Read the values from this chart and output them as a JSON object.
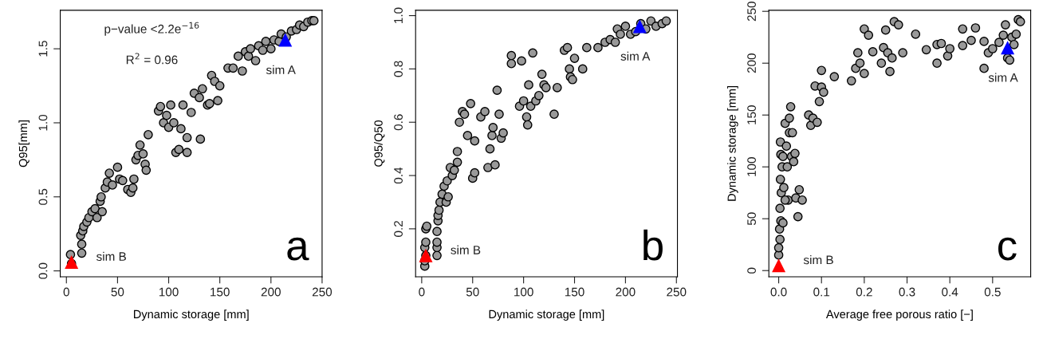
{
  "chart_data": [
    {
      "type": "scatter",
      "xlabel": "Dynamic storage [mm]",
      "ylabel": "Q95[mm]",
      "xlim": [
        -6,
        250
      ],
      "ylim": [
        -0.04,
        1.76
      ],
      "xticks": [
        0,
        50,
        100,
        150,
        200,
        250
      ],
      "yticks": [
        {
          "value": 0,
          "label": "0.0"
        },
        {
          "value": 0.5,
          "label": "0.5"
        },
        {
          "value": 1,
          "label": "1.0"
        },
        {
          "value": 1.5,
          "label": "1.5"
        }
      ],
      "grid": false,
      "legend": false,
      "annotations": [
        "p−value <2.2e$^{−16}$",
        "R$^{2}$ = 0.96",
        "a"
      ],
      "series": [
        {
          "color": "#999999",
          "marker": "circle",
          "x": [
            5,
            4,
            15,
            15,
            14,
            16,
            17,
            20,
            22,
            25,
            28,
            30,
            33,
            34,
            35,
            38,
            40,
            42,
            45,
            50,
            52,
            55,
            60,
            63,
            65,
            66,
            68,
            70,
            72,
            75,
            77,
            78,
            80,
            90,
            92,
            95,
            98,
            100,
            102,
            105,
            107,
            110,
            112,
            114,
            118,
            118,
            122,
            125,
            130,
            131,
            133,
            138,
            140,
            142,
            145,
            148,
            150,
            158,
            163,
            168,
            172,
            175,
            178,
            180,
            185,
            188,
            192,
            195,
            200,
            203,
            208,
            210,
            215,
            220,
            225,
            228,
            232,
            236,
            240,
            242
          ],
          "values": [
            0.05,
            0.11,
            0.12,
            0.18,
            0.24,
            0.27,
            0.3,
            0.33,
            0.36,
            0.4,
            0.42,
            0.36,
            0.47,
            0.5,
            0.4,
            0.56,
            0.6,
            0.66,
            0.58,
            0.7,
            0.62,
            0.61,
            0.55,
            0.53,
            0.56,
            0.62,
            0.75,
            0.78,
            0.85,
            0.79,
            0.72,
            0.68,
            0.92,
            1.08,
            1.11,
            1.0,
            1.05,
            0.97,
            1.12,
            1.0,
            0.8,
            0.82,
            0.96,
            1.12,
            0.9,
            0.8,
            1.07,
            1.2,
            1.17,
            0.89,
            1.23,
            1.12,
            1.13,
            1.32,
            1.28,
            1.15,
            1.25,
            1.37,
            1.37,
            1.45,
            1.35,
            1.48,
            1.45,
            1.5,
            1.42,
            1.52,
            1.49,
            1.55,
            1.5,
            1.56,
            1.55,
            1.6,
            1.58,
            1.62,
            1.63,
            1.66,
            1.65,
            1.68,
            1.69,
            1.69
          ]
        },
        {
          "name": "sim B",
          "color": "#ff0000",
          "marker": "triangle",
          "x": [
            5
          ],
          "values": [
            0.06
          ]
        },
        {
          "name": "sim A",
          "color": "#0000ff",
          "marker": "triangle",
          "x": [
            214
          ],
          "values": [
            1.56
          ]
        }
      ]
    },
    {
      "type": "scatter",
      "xlabel": "Dynamic storage [mm]",
      "ylabel": "Q95/Q50",
      "xlim": [
        -6,
        251
      ],
      "ylim": [
        0.02,
        1.02
      ],
      "xticks": [
        0,
        50,
        100,
        150,
        200,
        250
      ],
      "yticks": [
        0.2,
        0.4,
        0.6,
        0.8,
        {
          "value": 1,
          "label": "1.0"
        }
      ],
      "grid": false,
      "legend": false,
      "annotations": [
        "b"
      ],
      "series": [
        {
          "color": "#999999",
          "marker": "circle",
          "x": [
            3,
            3,
            4,
            3,
            4,
            4,
            5,
            15,
            15,
            15,
            15,
            16,
            16,
            17,
            18,
            20,
            22,
            24,
            25,
            26,
            28,
            30,
            32,
            35,
            35,
            37,
            40,
            42,
            45,
            48,
            50,
            52,
            52,
            58,
            62,
            65,
            67,
            69,
            70,
            72,
            74,
            76,
            78,
            80,
            88,
            88,
            96,
            98,
            100,
            103,
            104,
            105,
            107,
            109,
            112,
            115,
            118,
            120,
            122,
            130,
            133,
            140,
            143,
            145,
            146,
            148,
            150,
            158,
            162,
            173,
            180,
            185,
            190,
            192,
            195,
            200,
            205,
            210,
            215,
            220,
            225,
            230,
            236,
            240
          ],
          "values": [
            0.06,
            0.08,
            0.1,
            0.13,
            0.15,
            0.2,
            0.21,
            0.1,
            0.13,
            0.15,
            0.19,
            0.23,
            0.25,
            0.27,
            0.3,
            0.33,
            0.36,
            0.3,
            0.38,
            0.32,
            0.43,
            0.4,
            0.42,
            0.49,
            0.45,
            0.6,
            0.64,
            0.63,
            0.55,
            0.67,
            0.39,
            0.41,
            0.53,
            0.62,
            0.64,
            0.43,
            0.5,
            0.55,
            0.58,
            0.44,
            0.72,
            0.63,
            0.54,
            0.56,
            0.85,
            0.82,
            0.66,
            0.83,
            0.68,
            0.62,
            0.59,
            0.74,
            0.66,
            0.86,
            0.68,
            0.7,
            0.78,
            0.74,
            0.73,
            0.63,
            0.73,
            0.87,
            0.88,
            0.8,
            0.77,
            0.76,
            0.84,
            0.8,
            0.88,
            0.88,
            0.9,
            0.91,
            0.9,
            0.95,
            0.93,
            0.96,
            0.93,
            0.94,
            0.97,
            0.95,
            0.98,
            0.96,
            0.97,
            0.98
          ]
        },
        {
          "name": "sim B",
          "color": "#ff0000",
          "marker": "triangle",
          "x": [
            4
          ],
          "values": [
            0.1
          ]
        },
        {
          "name": "sim A",
          "color": "#0000ff",
          "marker": "triangle",
          "x": [
            214
          ],
          "values": [
            0.96
          ]
        }
      ]
    },
    {
      "type": "scatter",
      "xlabel": "Average free porous ratio [−]",
      "ylabel": "Dynamic storage [mm]",
      "xlim": [
        -0.023,
        0.589
      ],
      "ylim": [
        -6,
        251
      ],
      "xticks": [
        {
          "value": 0,
          "label": "0.0"
        },
        0.1,
        0.2,
        0.3,
        0.4,
        0.5
      ],
      "yticks": [
        0,
        50,
        100,
        150,
        200,
        250
      ],
      "grid": false,
      "legend": false,
      "annotations": [
        "c"
      ],
      "series": [
        {
          "color": "#999999",
          "marker": "circle",
          "x": [
            0,
            0,
            0.003,
            0.002,
            0.005,
            0.003,
            0.006,
            0.004,
            0.008,
            0.005,
            0.004,
            0.01,
            0.012,
            0.015,
            0.018,
            0.02,
            0.022,
            0.025,
            0.025,
            0.028,
            0.03,
            0.032,
            0.035,
            0.038,
            0.04,
            0.045,
            0.048,
            0.055,
            0.01,
            0.015,
            0.07,
            0.075,
            0.08,
            0.085,
            0.09,
            0.095,
            0.1,
            0.1,
            0.105,
            0.13,
            0.17,
            0.18,
            0.185,
            0.19,
            0.2,
            0.2,
            0.21,
            0.22,
            0.24,
            0.245,
            0.25,
            0.255,
            0.26,
            0.265,
            0.27,
            0.28,
            0.29,
            0.32,
            0.345,
            0.37,
            0.37,
            0.38,
            0.395,
            0.4,
            0.43,
            0.43,
            0.45,
            0.46,
            0.48,
            0.48,
            0.49,
            0.5,
            0.515,
            0.525,
            0.53,
            0.535,
            0.54,
            0.545,
            0.55,
            0.56,
            0.565,
            0.555
          ],
          "values": [
            15,
            22,
            30,
            40,
            48,
            60,
            75,
            88,
            100,
            112,
            124,
            110,
            80,
            142,
            120,
            100,
            68,
            133,
            147,
            158,
            110,
            133,
            105,
            113,
            70,
            52,
            78,
            68,
            46,
            68,
            150,
            140,
            147,
            178,
            143,
            163,
            193,
            177,
            172,
            187,
            183,
            195,
            210,
            200,
            190,
            233,
            227,
            211,
            200,
            215,
            232,
            210,
            192,
            205,
            240,
            237,
            210,
            228,
            213,
            218,
            200,
            219,
            207,
            214,
            233,
            217,
            222,
            234,
            221,
            195,
            210,
            214,
            220,
            227,
            237,
            205,
            203,
            225,
            218,
            242,
            240,
            228
          ]
        },
        {
          "name": "sim B",
          "color": "#ff0000",
          "marker": "triangle",
          "x": [
            0
          ],
          "values": [
            5
          ]
        },
        {
          "name": "sim A",
          "color": "#0000ff",
          "marker": "triangle",
          "x": [
            0.535
          ],
          "values": [
            215
          ]
        }
      ]
    }
  ]
}
